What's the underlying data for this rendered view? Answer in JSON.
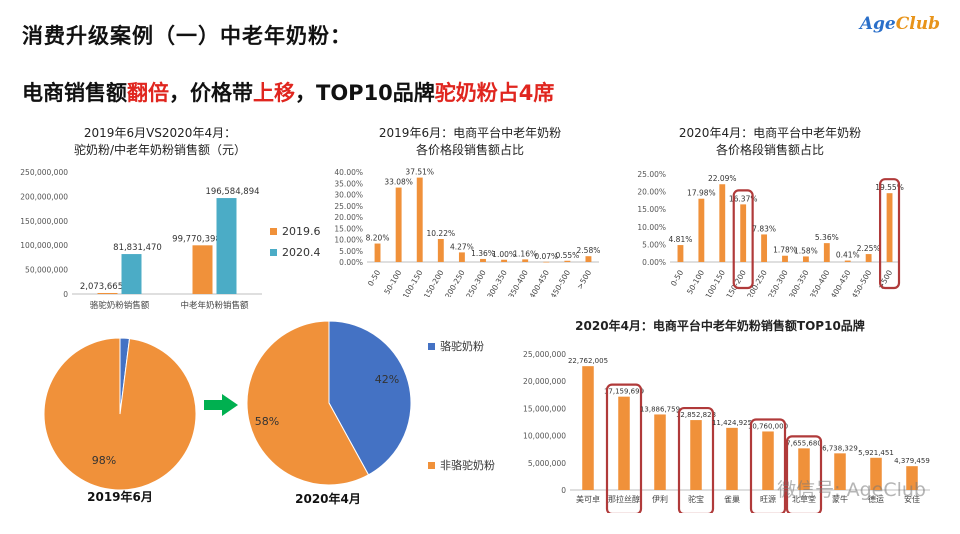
{
  "slide": {
    "title": "消费升级案例（一）中老年奶粉：",
    "brand": {
      "age": "Age",
      "club": "Club"
    },
    "headline": {
      "part1": "电商销售额",
      "part2": "翻倍",
      "part3": "，价格带",
      "part4": "上移",
      "part5": "，TOP10品牌",
      "part6": "驼奶粉占4席"
    },
    "watermark": "微信号: AgeClub"
  },
  "colors": {
    "orange": "#f0913a",
    "teal": "#4bacc6",
    "blue": "#4472c4",
    "red_box": "#b03a3a",
    "green_arrow": "#00b050"
  },
  "chart_data": [
    {
      "id": "sales_compare",
      "type": "bar",
      "title_line1": "2019年6月VS2020年4月：",
      "title_line2": "驼奶粉/中老年奶粉销售额（元）",
      "categories": [
        "骆驼奶粉销售额",
        "中老年奶粉销售额"
      ],
      "series": [
        {
          "name": "2019.6",
          "values": [
            2073665,
            99770398
          ],
          "labels": [
            "2,073,665",
            "99,770,398"
          ],
          "color": "#f0913a"
        },
        {
          "name": "2020.4",
          "values": [
            81831470,
            196584894
          ],
          "labels": [
            "81,831,470",
            "196,584,894"
          ],
          "color": "#4bacc6"
        }
      ],
      "yticks": [
        "0",
        "50,000,000",
        "100,000,000",
        "150,000,000",
        "200,000,000",
        "250,000,000"
      ],
      "ylim": [
        0,
        250000000
      ],
      "legend": "right"
    },
    {
      "id": "price_2019",
      "type": "bar",
      "title_line1": "2019年6月：电商平台中老年奶粉",
      "title_line2": "各价格段销售额占比",
      "categories": [
        "0-50",
        "50-100",
        "100-150",
        "150-200",
        "200-250",
        "250-300",
        "300-350",
        "350-400",
        "400-450",
        "450-500",
        ">500"
      ],
      "values": [
        8.2,
        33.08,
        37.51,
        10.22,
        4.27,
        1.36,
        1.0,
        1.16,
        0.07,
        0.55,
        2.58
      ],
      "labels": [
        "8.20%",
        "33.08%",
        "37.51%",
        "10.22%",
        "4.27%",
        "1.36%",
        "1.00%",
        "1.16%",
        "0.07%",
        "0.55%",
        "2.58%"
      ],
      "yticks": [
        "0.00%",
        "5.00%",
        "10.00%",
        "15.00%",
        "20.00%",
        "25.00%",
        "30.00%",
        "35.00%",
        "40.00%"
      ],
      "ylim": [
        0,
        40
      ],
      "color": "#f0913a"
    },
    {
      "id": "price_2020",
      "type": "bar",
      "title_line1": "2020年4月：电商平台中老年奶粉",
      "title_line2": "各价格段销售额占比",
      "categories": [
        "0-50",
        "50-100",
        "100-150",
        "150-200",
        "200-250",
        "250-300",
        "300-350",
        "350-400",
        "400-450",
        "450-500",
        ">500"
      ],
      "values": [
        4.81,
        17.98,
        22.09,
        16.37,
        7.83,
        1.78,
        1.58,
        5.36,
        0.41,
        2.25,
        19.55
      ],
      "labels": [
        "4.81%",
        "17.98%",
        "22.09%",
        "16.37%",
        "7.83%",
        "1.78%",
        "1.58%",
        "5.36%",
        "0.41%",
        "2.25%",
        "19.55%"
      ],
      "highlighted": [
        "150-200",
        ">500"
      ],
      "yticks": [
        "0.00%",
        "5.00%",
        "10.00%",
        "15.00%",
        "20.00%",
        "25.00%"
      ],
      "ylim": [
        0,
        25
      ],
      "color": "#f0913a"
    },
    {
      "id": "pie_2019",
      "type": "pie",
      "caption": "2019年6月",
      "slices": [
        {
          "name": "骆驼奶粉",
          "value": 2,
          "label": "2%",
          "color": "#4472c4"
        },
        {
          "name": "非骆驼奶粉",
          "value": 98,
          "label": "98%",
          "color": "#f0913a"
        }
      ]
    },
    {
      "id": "pie_2020",
      "type": "pie",
      "caption": "2020年4月",
      "slices": [
        {
          "name": "骆驼奶粉",
          "value": 42,
          "label": "42%",
          "color": "#4472c4"
        },
        {
          "name": "非骆驼奶粉",
          "value": 58,
          "label": "58%",
          "color": "#f0913a"
        }
      ],
      "legend": [
        "骆驼奶粉",
        "非骆驼奶粉"
      ]
    },
    {
      "id": "top10",
      "type": "bar",
      "title": "2020年4月：电商平台中老年奶粉销售额TOP10品牌",
      "categories": [
        "美可卓",
        "那拉丝醇",
        "伊利",
        "驼宝",
        "雀巢",
        "旺源",
        "北草堂",
        "蒙牛",
        "德运",
        "安佳"
      ],
      "values": [
        22762005,
        17159699,
        13886759,
        12852823,
        11424925,
        10760000,
        7655680,
        6738329,
        5921451,
        4379459
      ],
      "labels": [
        "22,762,005",
        "17,159,699",
        "13,886,759",
        "12,852,823",
        "11,424,925",
        "10,760,000",
        "7,655,680",
        "6,738,329",
        "5,921,451",
        "4,379,459"
      ],
      "highlighted": [
        "那拉丝醇",
        "驼宝",
        "旺源",
        "北草堂"
      ],
      "yticks": [
        "0",
        "5,000,000",
        "10,000,000",
        "15,000,000",
        "20,000,000",
        "25,000,000"
      ],
      "ylim": [
        0,
        25000000
      ],
      "color": "#f0913a"
    }
  ]
}
